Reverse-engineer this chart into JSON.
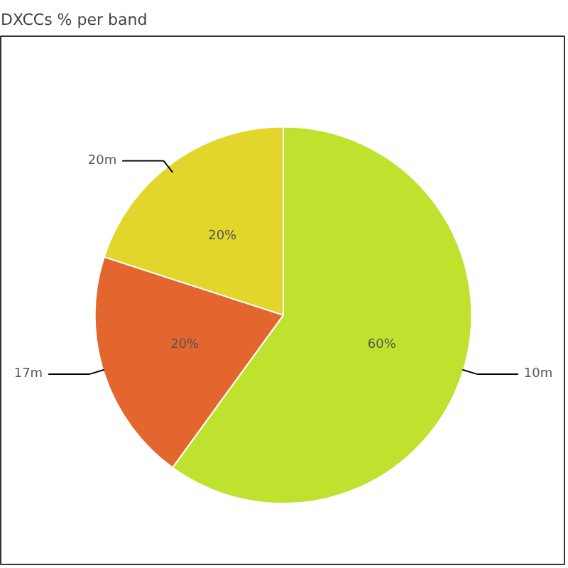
{
  "chart_data": {
    "type": "pie",
    "title": "DXCCs % per band",
    "categories": [
      "10m",
      "17m",
      "20m"
    ],
    "values": [
      60,
      20,
      20
    ],
    "colors": [
      "#bfe22f",
      "#e3662f",
      "#e2d62c"
    ],
    "value_labels": [
      "60%",
      "20%",
      "20%"
    ]
  }
}
